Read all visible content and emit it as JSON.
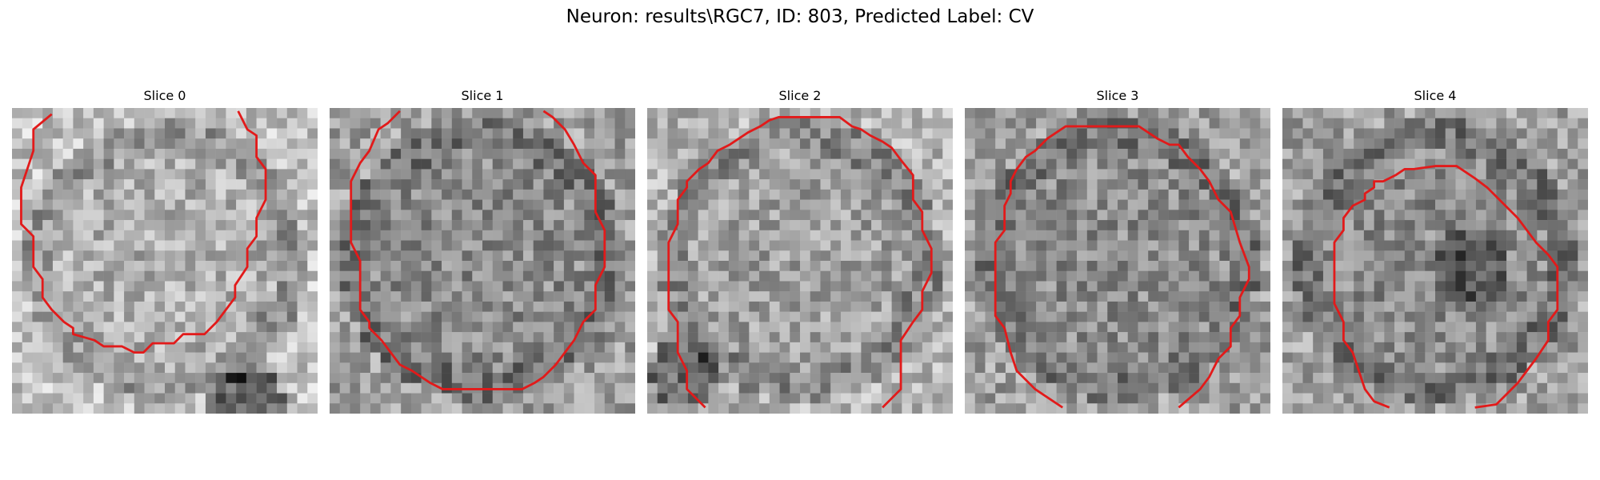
{
  "figure": {
    "title": "Neuron: results\\RGC7, ID: 803, Predicted Label: CV"
  },
  "panels": [
    {
      "title": "Slice 0",
      "seed": 11,
      "cell_tone": "bright",
      "blob": "bottom-right-dark",
      "contour": [
        [
          0.13,
          0.02
        ],
        [
          0.07,
          0.07
        ],
        [
          0.07,
          0.14
        ],
        [
          0.03,
          0.26
        ],
        [
          0.03,
          0.38
        ],
        [
          0.07,
          0.42
        ],
        [
          0.07,
          0.52
        ],
        [
          0.1,
          0.56
        ],
        [
          0.1,
          0.62
        ],
        [
          0.13,
          0.66
        ],
        [
          0.17,
          0.7
        ],
        [
          0.2,
          0.72
        ],
        [
          0.2,
          0.74
        ],
        [
          0.27,
          0.76
        ],
        [
          0.3,
          0.78
        ],
        [
          0.36,
          0.78
        ],
        [
          0.4,
          0.8
        ],
        [
          0.43,
          0.8
        ],
        [
          0.46,
          0.77
        ],
        [
          0.53,
          0.77
        ],
        [
          0.56,
          0.74
        ],
        [
          0.63,
          0.74
        ],
        [
          0.67,
          0.7
        ],
        [
          0.7,
          0.66
        ],
        [
          0.73,
          0.62
        ],
        [
          0.73,
          0.58
        ],
        [
          0.77,
          0.52
        ],
        [
          0.77,
          0.46
        ],
        [
          0.8,
          0.42
        ],
        [
          0.8,
          0.36
        ],
        [
          0.83,
          0.3
        ],
        [
          0.83,
          0.2
        ],
        [
          0.8,
          0.16
        ],
        [
          0.8,
          0.09
        ],
        [
          0.77,
          0.07
        ],
        [
          0.74,
          0.01
        ]
      ]
    },
    {
      "title": "Slice 1",
      "seed": 23,
      "cell_tone": "mid",
      "blob": "none",
      "contour": [
        [
          0.23,
          0.01
        ],
        [
          0.19,
          0.05
        ],
        [
          0.16,
          0.07
        ],
        [
          0.13,
          0.14
        ],
        [
          0.1,
          0.18
        ],
        [
          0.07,
          0.24
        ],
        [
          0.07,
          0.44
        ],
        [
          0.1,
          0.5
        ],
        [
          0.1,
          0.66
        ],
        [
          0.13,
          0.7
        ],
        [
          0.13,
          0.72
        ],
        [
          0.17,
          0.76
        ],
        [
          0.2,
          0.8
        ],
        [
          0.23,
          0.84
        ],
        [
          0.27,
          0.86
        ],
        [
          0.3,
          0.88
        ],
        [
          0.33,
          0.9
        ],
        [
          0.37,
          0.92
        ],
        [
          0.5,
          0.92
        ],
        [
          0.63,
          0.92
        ],
        [
          0.67,
          0.9
        ],
        [
          0.7,
          0.88
        ],
        [
          0.74,
          0.84
        ],
        [
          0.77,
          0.8
        ],
        [
          0.8,
          0.76
        ],
        [
          0.83,
          0.7
        ],
        [
          0.87,
          0.66
        ],
        [
          0.87,
          0.58
        ],
        [
          0.9,
          0.52
        ],
        [
          0.9,
          0.4
        ],
        [
          0.87,
          0.34
        ],
        [
          0.87,
          0.22
        ],
        [
          0.83,
          0.18
        ],
        [
          0.8,
          0.12
        ],
        [
          0.77,
          0.07
        ],
        [
          0.73,
          0.03
        ],
        [
          0.7,
          0.01
        ]
      ]
    },
    {
      "title": "Slice 2",
      "seed": 37,
      "cell_tone": "mid-bright",
      "blob": "bottom-left-dark",
      "contour": [
        [
          0.19,
          0.98
        ],
        [
          0.13,
          0.92
        ],
        [
          0.13,
          0.86
        ],
        [
          0.1,
          0.8
        ],
        [
          0.1,
          0.7
        ],
        [
          0.07,
          0.66
        ],
        [
          0.07,
          0.6
        ],
        [
          0.07,
          0.44
        ],
        [
          0.1,
          0.38
        ],
        [
          0.1,
          0.3
        ],
        [
          0.13,
          0.26
        ],
        [
          0.13,
          0.24
        ],
        [
          0.17,
          0.2
        ],
        [
          0.2,
          0.18
        ],
        [
          0.23,
          0.14
        ],
        [
          0.27,
          0.12
        ],
        [
          0.3,
          0.1
        ],
        [
          0.33,
          0.08
        ],
        [
          0.37,
          0.06
        ],
        [
          0.4,
          0.04
        ],
        [
          0.43,
          0.03
        ],
        [
          0.63,
          0.03
        ],
        [
          0.67,
          0.06
        ],
        [
          0.7,
          0.07
        ],
        [
          0.73,
          0.09
        ],
        [
          0.77,
          0.11
        ],
        [
          0.8,
          0.13
        ],
        [
          0.83,
          0.17
        ],
        [
          0.87,
          0.22
        ],
        [
          0.87,
          0.3
        ],
        [
          0.9,
          0.34
        ],
        [
          0.9,
          0.4
        ],
        [
          0.93,
          0.46
        ],
        [
          0.93,
          0.54
        ],
        [
          0.9,
          0.6
        ],
        [
          0.9,
          0.66
        ],
        [
          0.87,
          0.7
        ],
        [
          0.83,
          0.76
        ],
        [
          0.83,
          0.92
        ],
        [
          0.77,
          0.98
        ]
      ]
    },
    {
      "title": "Slice 3",
      "seed": 53,
      "cell_tone": "mid",
      "blob": "none",
      "contour": [
        [
          0.32,
          0.98
        ],
        [
          0.23,
          0.92
        ],
        [
          0.17,
          0.86
        ],
        [
          0.15,
          0.8
        ],
        [
          0.13,
          0.72
        ],
        [
          0.1,
          0.68
        ],
        [
          0.1,
          0.44
        ],
        [
          0.13,
          0.4
        ],
        [
          0.13,
          0.32
        ],
        [
          0.15,
          0.28
        ],
        [
          0.15,
          0.24
        ],
        [
          0.17,
          0.2
        ],
        [
          0.2,
          0.16
        ],
        [
          0.23,
          0.14
        ],
        [
          0.27,
          0.1
        ],
        [
          0.3,
          0.08
        ],
        [
          0.33,
          0.06
        ],
        [
          0.36,
          0.06
        ],
        [
          0.5,
          0.06
        ],
        [
          0.57,
          0.06
        ],
        [
          0.6,
          0.08
        ],
        [
          0.63,
          0.1
        ],
        [
          0.67,
          0.12
        ],
        [
          0.7,
          0.12
        ],
        [
          0.73,
          0.16
        ],
        [
          0.77,
          0.2
        ],
        [
          0.8,
          0.24
        ],
        [
          0.83,
          0.3
        ],
        [
          0.87,
          0.34
        ],
        [
          0.9,
          0.44
        ],
        [
          0.93,
          0.52
        ],
        [
          0.93,
          0.56
        ],
        [
          0.9,
          0.62
        ],
        [
          0.9,
          0.68
        ],
        [
          0.87,
          0.72
        ],
        [
          0.87,
          0.78
        ],
        [
          0.83,
          0.82
        ],
        [
          0.8,
          0.88
        ],
        [
          0.77,
          0.92
        ],
        [
          0.7,
          0.98
        ]
      ]
    },
    {
      "title": "Slice 4",
      "seed": 71,
      "cell_tone": "mid",
      "blob": "center-dark",
      "contour": [
        [
          0.35,
          0.98
        ],
        [
          0.3,
          0.96
        ],
        [
          0.27,
          0.92
        ],
        [
          0.25,
          0.86
        ],
        [
          0.23,
          0.8
        ],
        [
          0.2,
          0.76
        ],
        [
          0.2,
          0.7
        ],
        [
          0.17,
          0.64
        ],
        [
          0.17,
          0.5
        ],
        [
          0.17,
          0.44
        ],
        [
          0.2,
          0.4
        ],
        [
          0.2,
          0.36
        ],
        [
          0.23,
          0.32
        ],
        [
          0.27,
          0.3
        ],
        [
          0.27,
          0.28
        ],
        [
          0.3,
          0.26
        ],
        [
          0.3,
          0.24
        ],
        [
          0.33,
          0.24
        ],
        [
          0.37,
          0.22
        ],
        [
          0.4,
          0.2
        ],
        [
          0.43,
          0.2
        ],
        [
          0.5,
          0.19
        ],
        [
          0.57,
          0.19
        ],
        [
          0.6,
          0.21
        ],
        [
          0.63,
          0.23
        ],
        [
          0.67,
          0.26
        ],
        [
          0.7,
          0.29
        ],
        [
          0.73,
          0.32
        ],
        [
          0.77,
          0.36
        ],
        [
          0.8,
          0.4
        ],
        [
          0.83,
          0.44
        ],
        [
          0.87,
          0.48
        ],
        [
          0.9,
          0.52
        ],
        [
          0.9,
          0.66
        ],
        [
          0.87,
          0.7
        ],
        [
          0.87,
          0.76
        ],
        [
          0.83,
          0.82
        ],
        [
          0.8,
          0.86
        ],
        [
          0.77,
          0.9
        ],
        [
          0.73,
          0.94
        ],
        [
          0.7,
          0.97
        ],
        [
          0.63,
          0.98
        ]
      ]
    }
  ],
  "style": {
    "contour_color": "#e21a1a",
    "background": "#ffffff"
  }
}
